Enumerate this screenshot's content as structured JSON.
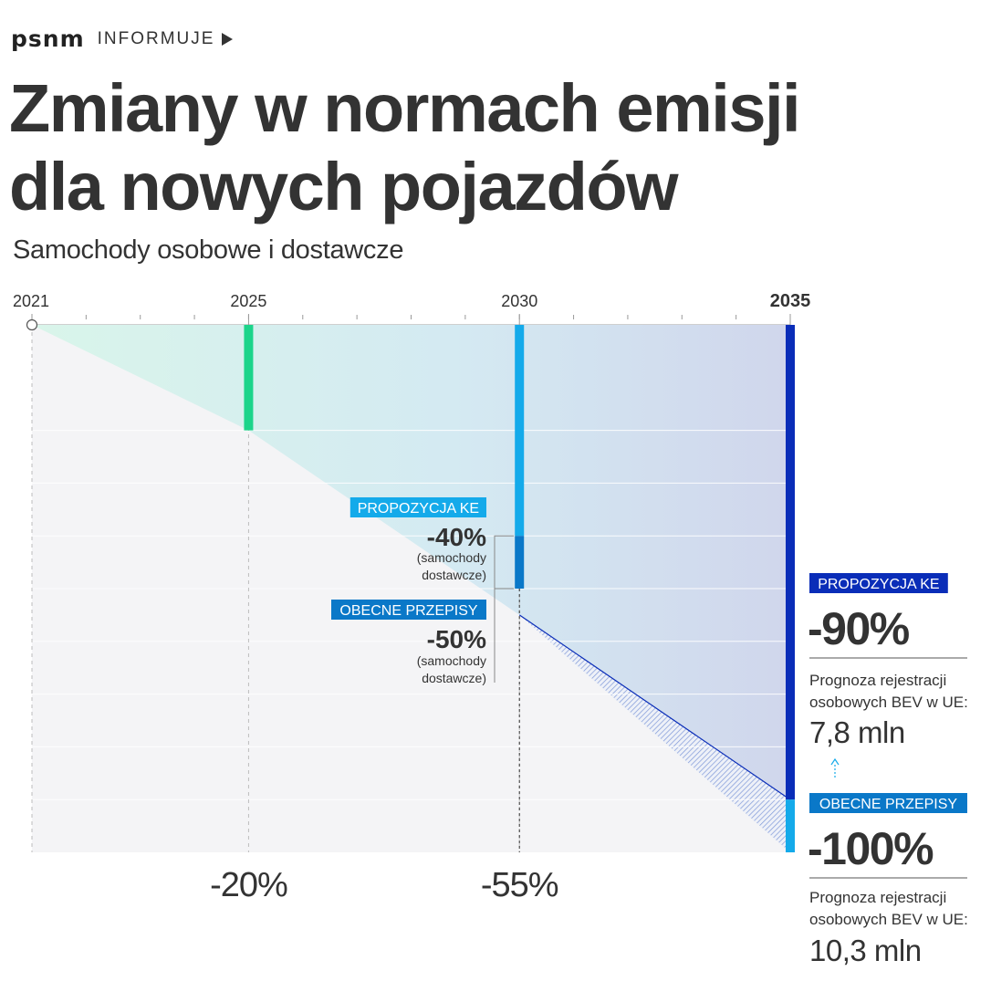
{
  "header": {
    "logo": "psnm",
    "section": "INFORMUJE"
  },
  "title_lines": [
    "Zmiany w normach emisji",
    "dla nowych pojazdów"
  ],
  "subtitle": "Samochody osobowe i dostawcze",
  "colors": {
    "text": "#333333",
    "grid": "#dddddd",
    "bg_area": "#f4f4f6",
    "green_bar": "#1cd48a",
    "proposal_light": "#14aaea",
    "current_blue": "#0a78c8",
    "proposal_dark": "#0a2db8",
    "hatch": "#7f98d8"
  },
  "chart_data": {
    "type": "area",
    "x_ticks": [
      {
        "year": 2021,
        "label": "2021"
      },
      {
        "year": 2025,
        "label": "2025"
      },
      {
        "year": 2030,
        "label": "2030"
      },
      {
        "year": 2035,
        "label": "2035"
      }
    ],
    "xlim": [
      2021,
      2035
    ],
    "ylim": [
      -100,
      0
    ],
    "current_rules_path": [
      {
        "year": 2021,
        "reduction": 0
      },
      {
        "year": 2025,
        "reduction": -20
      },
      {
        "year": 2030,
        "reduction": -55
      },
      {
        "year": 2035,
        "reduction": -100
      }
    ],
    "proposal_path": [
      {
        "year": 2030,
        "reduction": -55
      },
      {
        "year": 2035,
        "reduction": -90
      }
    ],
    "bottom_labels": [
      {
        "year": 2025,
        "label": "-20%"
      },
      {
        "year": 2030,
        "label": "-55%"
      }
    ],
    "milestone_2030": {
      "proposal": {
        "badge": "PROPOZYCJA KE",
        "value": -40,
        "label": "-40%",
        "note": [
          "(samochody",
          "dostawcze)"
        ]
      },
      "current": {
        "badge": "OBECNE PRZEPISY",
        "value": -50,
        "label": "-50%",
        "note": [
          "(samochody",
          "dostawcze)"
        ]
      }
    },
    "milestone_2035": {
      "proposal": {
        "badge": "PROPOZYCJA KE",
        "value": -90,
        "label": "-90%",
        "forecast_text": [
          "Prognoza rejestracji",
          "osobowych BEV w UE:"
        ],
        "forecast_value": "7,8 mln"
      },
      "current": {
        "badge": "OBECNE PRZEPISY",
        "value": -100,
        "label": "-100%",
        "forecast_text": [
          "Prognoza rejestracji",
          "osobowych BEV w UE:"
        ],
        "forecast_value": "10,3 mln"
      }
    }
  }
}
